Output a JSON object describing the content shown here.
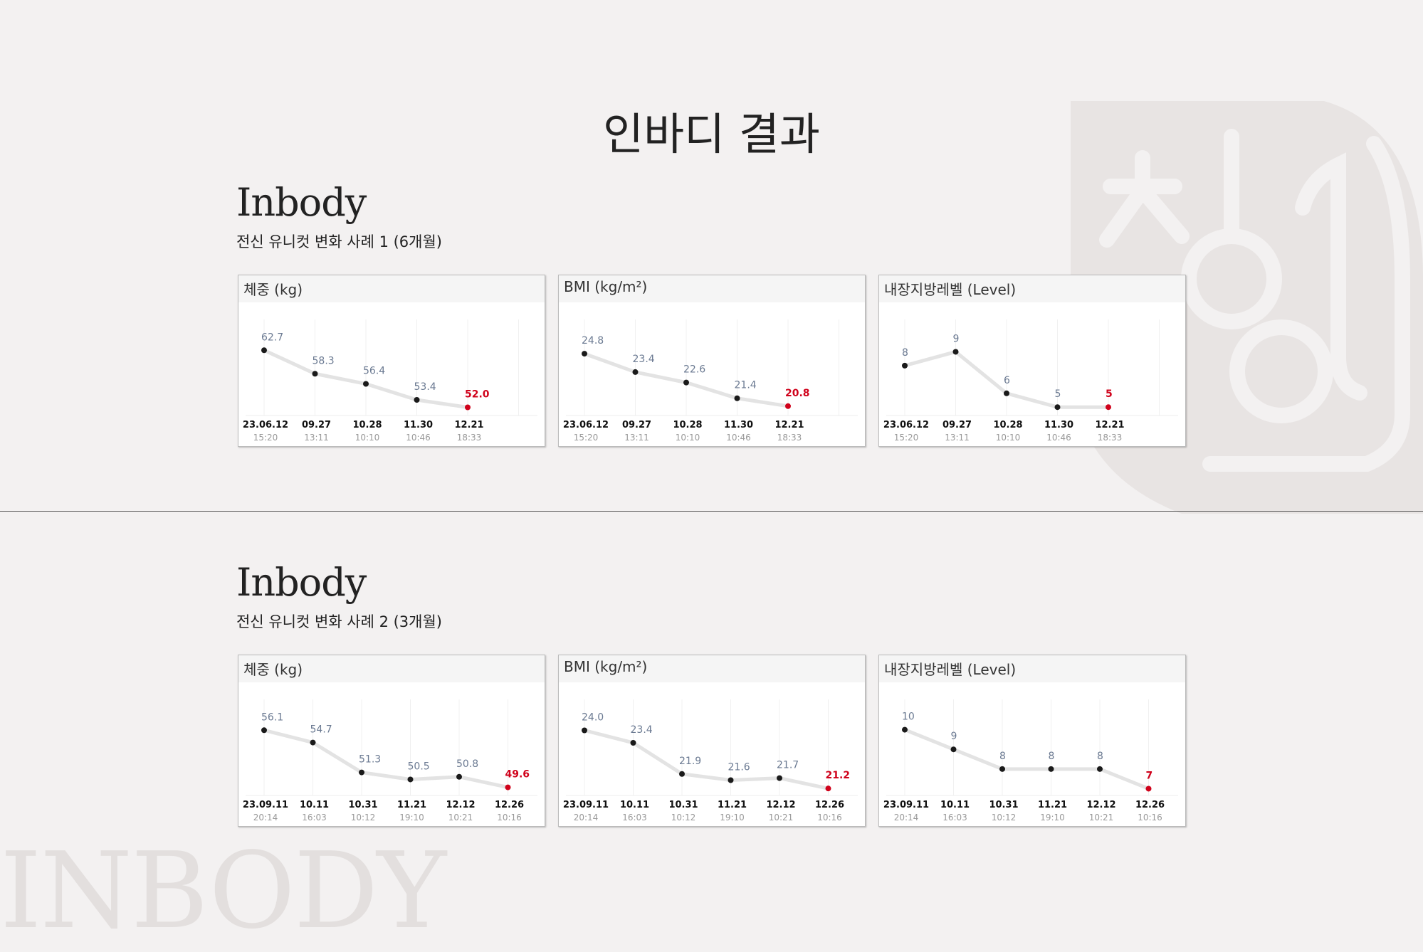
{
  "page": {
    "title": "인바디 결과",
    "watermark": "INBODY"
  },
  "colors": {
    "background": "#f3f1f1",
    "line": "#e3e3e3",
    "point": "#1a1a1a",
    "latest": "#d0021b",
    "value_label": "#6b7a92"
  },
  "sections": [
    {
      "brand": "Inbody",
      "caption": "전신 유니컷 변화 사례 1 (6개월)",
      "charts": [
        {
          "title": "체중 (kg)",
          "chart_data": {
            "type": "line",
            "categories": [
              {
                "date": "23.06.12",
                "time": "15:20"
              },
              {
                "date": "09.27",
                "time": "13:11"
              },
              {
                "date": "10.28",
                "time": "10:10"
              },
              {
                "date": "11.30",
                "time": "10:46"
              },
              {
                "date": "12.21",
                "time": "18:33"
              }
            ],
            "values": [
              62.7,
              58.3,
              56.4,
              53.4,
              52.0
            ],
            "labels": [
              "62.7",
              "58.3",
              "56.4",
              "53.4",
              "52.0"
            ],
            "ylim": [
              51,
              65
            ]
          }
        },
        {
          "title": "BMI (kg/m²)",
          "chart_data": {
            "type": "line",
            "categories": [
              {
                "date": "23.06.12",
                "time": "15:20"
              },
              {
                "date": "09.27",
                "time": "13:11"
              },
              {
                "date": "10.28",
                "time": "10:10"
              },
              {
                "date": "11.30",
                "time": "10:46"
              },
              {
                "date": "12.21",
                "time": "18:33"
              }
            ],
            "values": [
              24.8,
              23.4,
              22.6,
              21.4,
              20.8
            ],
            "labels": [
              "24.8",
              "23.4",
              "22.6",
              "21.4",
              "20.8"
            ],
            "ylim": [
              20.3,
              26
            ]
          }
        },
        {
          "title": "내장지방레벨 (Level)",
          "chart_data": {
            "type": "line",
            "categories": [
              {
                "date": "23.06.12",
                "time": "15:20"
              },
              {
                "date": "09.27",
                "time": "13:11"
              },
              {
                "date": "10.28",
                "time": "10:10"
              },
              {
                "date": "11.30",
                "time": "10:46"
              },
              {
                "date": "12.21",
                "time": "18:33"
              }
            ],
            "values": [
              8,
              9,
              6,
              5,
              5
            ],
            "labels": [
              "8",
              "9",
              "6",
              "5",
              "5"
            ],
            "ylim": [
              4.6,
              10
            ]
          }
        }
      ]
    },
    {
      "brand": "Inbody",
      "caption": "전신 유니컷 변화 사례 2 (3개월)",
      "charts": [
        {
          "title": "체중 (kg)",
          "chart_data": {
            "type": "line",
            "categories": [
              {
                "date": "23.09.11",
                "time": "20:14"
              },
              {
                "date": "10.11",
                "time": "16:03"
              },
              {
                "date": "10.31",
                "time": "10:12"
              },
              {
                "date": "11.21",
                "time": "19:10"
              },
              {
                "date": "12.12",
                "time": "10:21"
              },
              {
                "date": "12.26",
                "time": "10:16"
              }
            ],
            "values": [
              56.1,
              54.7,
              51.3,
              50.5,
              50.8,
              49.6
            ],
            "labels": [
              "56.1",
              "54.7",
              "51.3",
              "50.5",
              "50.8",
              "49.6"
            ],
            "ylim": [
              49,
              57.5
            ]
          }
        },
        {
          "title": "BMI (kg/m²)",
          "chart_data": {
            "type": "line",
            "categories": [
              {
                "date": "23.09.11",
                "time": "20:14"
              },
              {
                "date": "10.11",
                "time": "16:03"
              },
              {
                "date": "10.31",
                "time": "10:12"
              },
              {
                "date": "11.21",
                "time": "19:10"
              },
              {
                "date": "12.12",
                "time": "10:21"
              },
              {
                "date": "12.26",
                "time": "10:16"
              }
            ],
            "values": [
              24.0,
              23.4,
              21.9,
              21.6,
              21.7,
              21.2
            ],
            "labels": [
              "24.0",
              "23.4",
              "21.9",
              "21.6",
              "21.7",
              "21.2"
            ],
            "ylim": [
              21,
              24.6
            ]
          }
        },
        {
          "title": "내장지방레벨 (Level)",
          "chart_data": {
            "type": "line",
            "categories": [
              {
                "date": "23.09.11",
                "time": "20:14"
              },
              {
                "date": "10.11",
                "time": "16:03"
              },
              {
                "date": "10.31",
                "time": "10:12"
              },
              {
                "date": "11.21",
                "time": "19:10"
              },
              {
                "date": "12.12",
                "time": "10:21"
              },
              {
                "date": "12.26",
                "time": "10:16"
              }
            ],
            "values": [
              10,
              9,
              8,
              8,
              8,
              7
            ],
            "labels": [
              "10",
              "9",
              "8",
              "8",
              "8",
              "7"
            ],
            "ylim": [
              6.8,
              10.6
            ]
          }
        }
      ]
    }
  ]
}
